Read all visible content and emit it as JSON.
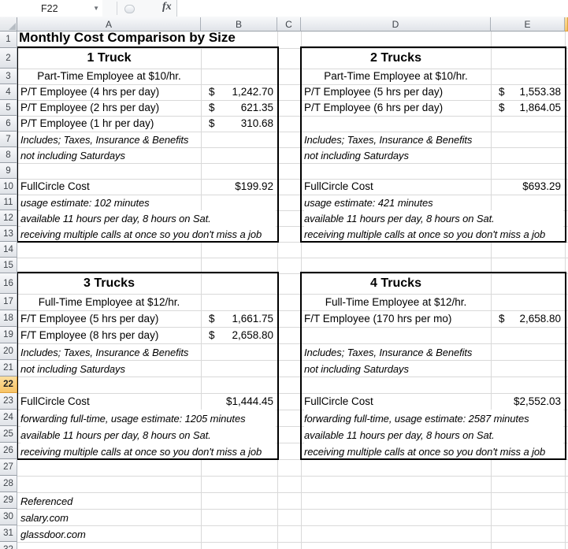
{
  "topbar": {
    "name_box": "F22",
    "fx": "fx"
  },
  "sheet": {
    "selected_cell": "F22",
    "column_headers": [
      "A",
      "B",
      "C",
      "D",
      "E"
    ],
    "highlighted_column": "F",
    "highlighted_row": 22,
    "row_numbers": [
      1,
      2,
      3,
      4,
      5,
      6,
      7,
      8,
      9,
      10,
      11,
      12,
      13,
      14,
      15,
      16,
      17,
      18,
      19,
      20,
      21,
      22,
      23,
      24,
      25,
      26,
      27,
      28,
      29,
      30,
      31,
      32
    ]
  },
  "title": "Monthly Cost Comparison by Size",
  "boxes": [
    {
      "id": "1-truck",
      "side": "left",
      "row_start": 2,
      "row_end": 13,
      "title": "1 Truck",
      "subtitle": "Part-Time Employee at $10/hr.",
      "lines": [
        {
          "row": 4,
          "type": "money",
          "label": "P/T Employee (4 hrs per day)",
          "currency": "$",
          "amount": "1,242.70"
        },
        {
          "row": 5,
          "type": "money",
          "label": "P/T Employee (2 hrs per day)",
          "currency": "$",
          "amount": "621.35"
        },
        {
          "row": 6,
          "type": "money",
          "label": "P/T Employee (1 hr per day)",
          "currency": "$",
          "amount": "310.68"
        },
        {
          "row": 7,
          "type": "note",
          "label": "Includes; Taxes, Insurance & Benefits"
        },
        {
          "row": 8,
          "type": "note",
          "label": "not including Saturdays"
        },
        {
          "row": 10,
          "type": "total",
          "label": "FullCircle Cost",
          "amount": "$199.92"
        },
        {
          "row": 11,
          "type": "note",
          "label": "usage estimate: 102 minutes"
        },
        {
          "row": 12,
          "type": "note",
          "label": "available 11 hours per day, 8 hours on Sat.",
          "spill": true
        },
        {
          "row": 13,
          "type": "note",
          "label": "receiving multiple calls at once so you don't miss a job",
          "spill": true
        }
      ]
    },
    {
      "id": "2-trucks",
      "side": "right",
      "row_start": 2,
      "row_end": 13,
      "title": "2 Trucks",
      "subtitle": "Part-Time Employee at $10/hr.",
      "lines": [
        {
          "row": 4,
          "type": "money",
          "label": "P/T Employee (5 hrs per day)",
          "currency": "$",
          "amount": "1,553.38"
        },
        {
          "row": 5,
          "type": "money",
          "label": "P/T Employee (6 hrs per day)",
          "currency": "$",
          "amount": "1,864.05"
        },
        {
          "row": 7,
          "type": "note",
          "label": "Includes; Taxes, Insurance & Benefits"
        },
        {
          "row": 8,
          "type": "note",
          "label": "not including Saturdays"
        },
        {
          "row": 10,
          "type": "total",
          "label": "FullCircle Cost",
          "amount": "$693.29"
        },
        {
          "row": 11,
          "type": "note",
          "label": "usage estimate: 421 minutes"
        },
        {
          "row": 12,
          "type": "note",
          "label": "available 11 hours per day, 8 hours on Sat.",
          "spill": true
        },
        {
          "row": 13,
          "type": "note",
          "label": "receiving multiple calls at once so you don't miss a job",
          "spill": true
        }
      ]
    },
    {
      "id": "3-trucks",
      "side": "left",
      "row_start": 16,
      "row_end": 26,
      "title": "3 Trucks",
      "subtitle": "Full-Time Employee at $12/hr.",
      "lines": [
        {
          "row": 18,
          "type": "money",
          "label": "F/T Employee (5 hrs per day)",
          "currency": "$",
          "amount": "1,661.75"
        },
        {
          "row": 19,
          "type": "money",
          "label": "F/T Employee (8 hrs per day)",
          "currency": "$",
          "amount": "2,658.80"
        },
        {
          "row": 20,
          "type": "note",
          "label": "Includes; Taxes, Insurance & Benefits"
        },
        {
          "row": 21,
          "type": "note",
          "label": "not including Saturdays"
        },
        {
          "row": 23,
          "type": "total",
          "label": "FullCircle Cost",
          "amount": "$1,444.45"
        },
        {
          "row": 24,
          "type": "note",
          "label": "forwarding full-time, usage estimate: 1205 minutes",
          "spill": true
        },
        {
          "row": 25,
          "type": "note",
          "label": "available 11 hours per day, 8 hours on Sat.",
          "spill": true
        },
        {
          "row": 26,
          "type": "note",
          "label": "receiving multiple calls at once so you don't miss a job",
          "spill": true
        }
      ]
    },
    {
      "id": "4-trucks",
      "side": "right",
      "row_start": 16,
      "row_end": 26,
      "title": "4 Trucks",
      "subtitle": "Full-Time Employee at $12/hr.",
      "lines": [
        {
          "row": 18,
          "type": "money",
          "label": "F/T Employee (170 hrs per mo)",
          "currency": "$",
          "amount": "2,658.80"
        },
        {
          "row": 20,
          "type": "note",
          "label": "Includes; Taxes, Insurance & Benefits"
        },
        {
          "row": 21,
          "type": "note",
          "label": "not including Saturdays"
        },
        {
          "row": 23,
          "type": "total",
          "label": "FullCircle Cost",
          "amount": "$2,552.03"
        },
        {
          "row": 24,
          "type": "note",
          "label": "forwarding full-time, usage estimate: 2587 minutes",
          "spill": true
        },
        {
          "row": 25,
          "type": "note",
          "label": "available 11 hours per day, 8 hours on Sat.",
          "spill": true
        },
        {
          "row": 26,
          "type": "note",
          "label": "receiving multiple calls at once so you don't miss a job",
          "spill": true
        }
      ]
    }
  ],
  "footnotes": [
    {
      "row": 29,
      "text": "Referenced"
    },
    {
      "row": 30,
      "text": "salary.com"
    },
    {
      "row": 31,
      "text": "glassdoor.com"
    }
  ],
  "colors": {
    "gridline": "#d9d9d9",
    "header_border": "#9aa0a8",
    "highlight_fill": "#f7c366",
    "highlight_border": "#dfa13c",
    "box_border": "#000000"
  }
}
